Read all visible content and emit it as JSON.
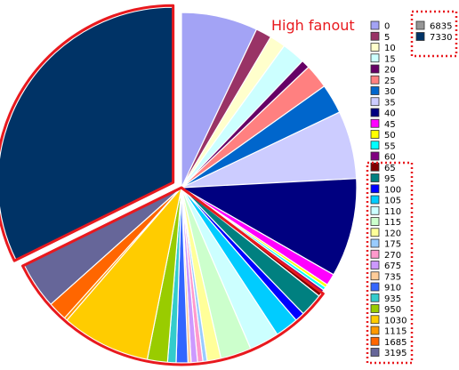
{
  "chart_data": {
    "type": "pie",
    "title": "",
    "annotation": "High fanout",
    "annotation_color": "#e8191e",
    "highlight_color": "#e8191e",
    "slices": [
      {
        "label": "0",
        "value": 7.2,
        "color": "#a3a3f5"
      },
      {
        "label": "5",
        "value": 1.5,
        "color": "#993366"
      },
      {
        "label": "10",
        "value": 1.5,
        "color": "#ffffcc"
      },
      {
        "label": "15",
        "value": 2.2,
        "color": "#ccffff"
      },
      {
        "label": "20",
        "value": 0.8,
        "color": "#660066"
      },
      {
        "label": "25",
        "value": 2.3,
        "color": "#ff8080"
      },
      {
        "label": "30",
        "value": 2.8,
        "color": "#0066cc"
      },
      {
        "label": "35",
        "value": 6.4,
        "color": "#ccccff"
      },
      {
        "label": "40",
        "value": 9.3,
        "color": "#000080"
      },
      {
        "label": "45",
        "value": 1.1,
        "color": "#ff00ff"
      },
      {
        "label": "50",
        "value": 0.3,
        "color": "#ffff00"
      },
      {
        "label": "55",
        "value": 0.3,
        "color": "#00ffff"
      },
      {
        "label": "60",
        "value": 0.3,
        "color": "#800080"
      },
      {
        "label": "65",
        "value": 0.4,
        "color": "#800000"
      },
      {
        "label": "95",
        "value": 2.2,
        "color": "#008080"
      },
      {
        "label": "100",
        "value": 0.9,
        "color": "#0000ff"
      },
      {
        "label": "105",
        "value": 2.2,
        "color": "#00ccff"
      },
      {
        "label": "110",
        "value": 2.8,
        "color": "#ccffff"
      },
      {
        "label": "115",
        "value": 2.9,
        "color": "#ccffcc"
      },
      {
        "label": "120",
        "value": 1.3,
        "color": "#ffff99"
      },
      {
        "label": "175",
        "value": 0.4,
        "color": "#99ccff"
      },
      {
        "label": "270",
        "value": 0.5,
        "color": "#ff99cc"
      },
      {
        "label": "675",
        "value": 0.6,
        "color": "#cc99ff"
      },
      {
        "label": "735",
        "value": 0.3,
        "color": "#ffcc99"
      },
      {
        "label": "910",
        "value": 1.1,
        "color": "#3366ff"
      },
      {
        "label": "935",
        "value": 0.8,
        "color": "#33cccc"
      },
      {
        "label": "950",
        "value": 1.9,
        "color": "#99cc00"
      },
      {
        "label": "1030",
        "value": 8.4,
        "color": "#ffcc00"
      },
      {
        "label": "1115",
        "value": 0.3,
        "color": "#ff9900"
      },
      {
        "label": "1685",
        "value": 1.8,
        "color": "#ff6600"
      },
      {
        "label": "3195",
        "value": 4.4,
        "color": "#666699"
      },
      {
        "label": "6835",
        "value": 0.0,
        "color": "#969696"
      },
      {
        "label": "7330",
        "value": 33.0,
        "color": "#003366"
      }
    ],
    "exploded": [
      "7330"
    ],
    "legend": [
      {
        "label": "0",
        "color": "#a3a3f5"
      },
      {
        "label": "5",
        "color": "#993366"
      },
      {
        "label": "10",
        "color": "#ffffcc"
      },
      {
        "label": "15",
        "color": "#ccffff"
      },
      {
        "label": "20",
        "color": "#660066"
      },
      {
        "label": "25",
        "color": "#ff8080"
      },
      {
        "label": "30",
        "color": "#0066cc"
      },
      {
        "label": "35",
        "color": "#ccccff"
      },
      {
        "label": "40",
        "color": "#000080"
      },
      {
        "label": "45",
        "color": "#ff00ff"
      },
      {
        "label": "50",
        "color": "#ffff00"
      },
      {
        "label": "55",
        "color": "#00ffff"
      },
      {
        "label": "60",
        "color": "#800080"
      },
      {
        "label": "65",
        "color": "#800000"
      },
      {
        "label": "95",
        "color": "#008080"
      },
      {
        "label": "100",
        "color": "#0000ff"
      },
      {
        "label": "105",
        "color": "#00ccff"
      },
      {
        "label": "110",
        "color": "#ccffff"
      },
      {
        "label": "115",
        "color": "#ccffcc"
      },
      {
        "label": "120",
        "color": "#ffff99"
      },
      {
        "label": "175",
        "color": "#99ccff"
      },
      {
        "label": "270",
        "color": "#ff99cc"
      },
      {
        "label": "675",
        "color": "#cc99ff"
      },
      {
        "label": "735",
        "color": "#ffcc99"
      },
      {
        "label": "910",
        "color": "#3366ff"
      },
      {
        "label": "935",
        "color": "#33cccc"
      },
      {
        "label": "950",
        "color": "#99cc00"
      },
      {
        "label": "1030",
        "color": "#ffcc00"
      },
      {
        "label": "1115",
        "color": "#ff9900"
      },
      {
        "label": "1685",
        "color": "#ff6600"
      },
      {
        "label": "3195",
        "color": "#666699"
      }
    ],
    "legend2": [
      {
        "label": "6835",
        "color": "#969696"
      },
      {
        "label": "7330",
        "color": "#003366"
      }
    ],
    "legend_placement": "right",
    "highlighted_legend_entries": [
      "65",
      "95",
      "100",
      "105",
      "110",
      "115",
      "120",
      "175",
      "270",
      "675",
      "735",
      "910",
      "935",
      "950",
      "1030",
      "1115",
      "1685",
      "3195",
      "6835",
      "7330"
    ]
  }
}
